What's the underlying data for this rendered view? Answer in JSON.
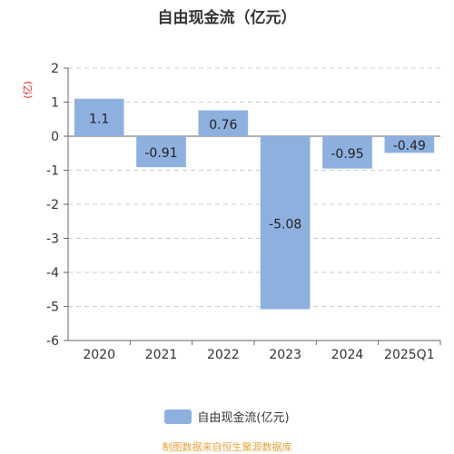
{
  "chart_data": {
    "type": "bar",
    "title": "自由现金流（亿元）",
    "ylabel": "(亿)",
    "categories": [
      "2020",
      "2021",
      "2022",
      "2023",
      "2024",
      "2025Q1"
    ],
    "series": [
      {
        "name": "自由现金流(亿元)",
        "values": [
          1.1,
          -0.91,
          0.76,
          -5.08,
          -0.95,
          -0.49
        ]
      }
    ],
    "data_labels": [
      "1.1",
      "-0.91",
      "0.76",
      "-5.08",
      "-0.95",
      "-0.49"
    ],
    "yticks": [
      2,
      1,
      0,
      -1,
      -2,
      -3,
      -4,
      -5,
      -6
    ],
    "ytick_labels": [
      "2",
      "1",
      "0",
      "-1",
      "-2",
      "-3",
      "-4",
      "-5",
      "-6"
    ],
    "ylim": [
      -6,
      2
    ],
    "grid": true,
    "legend_position": "bottom-center",
    "bar_color": "#8eb0df"
  },
  "legend": {
    "label": "自由现金流(亿元)"
  },
  "source": "制图数据来自恒生聚源数据库"
}
